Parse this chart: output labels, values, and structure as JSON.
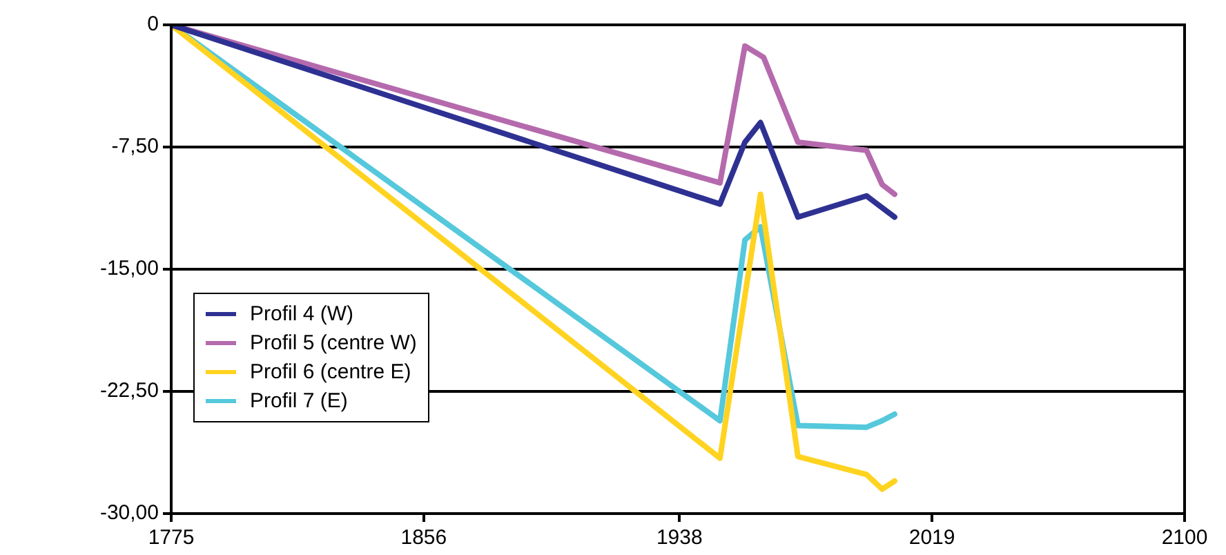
{
  "chart_data": {
    "type": "line",
    "series": [
      {
        "name": "Profil 4 (W)",
        "color": "#2e3192",
        "x": [
          1775,
          1951,
          1959,
          1964,
          1976,
          1998,
          2007
        ],
        "values": [
          0,
          -11.0,
          -7.2,
          -6.0,
          -11.8,
          -10.5,
          -11.8
        ]
      },
      {
        "name": "Profil 5 (centre W)",
        "color": "#b56aad",
        "x": [
          1775,
          1951,
          1959,
          1965,
          1976,
          1998,
          2003,
          2007
        ],
        "values": [
          0,
          -9.7,
          -1.3,
          -2.0,
          -7.2,
          -7.7,
          -9.8,
          -10.4
        ]
      },
      {
        "name": "Profil 6 (centre E)",
        "color": "#ffd320",
        "x": [
          1775,
          1951,
          1964,
          1976,
          1998,
          2003,
          2007
        ],
        "values": [
          0,
          -26.6,
          -10.4,
          -26.5,
          -27.6,
          -28.5,
          -28.0
        ]
      },
      {
        "name": "Profil 7 (E)",
        "color": "#55c8dc",
        "x": [
          1775,
          1951,
          1959,
          1964,
          1976,
          1998,
          2003,
          2007
        ],
        "values": [
          0,
          -24.3,
          -13.2,
          -12.4,
          -24.6,
          -24.7,
          -24.3,
          -23.9
        ]
      }
    ],
    "xlim": [
      1775,
      2100
    ],
    "xticks": [
      1775,
      1856,
      1938,
      2019,
      2100
    ],
    "ylim": [
      -30,
      0
    ],
    "yticks": [
      {
        "value": -30,
        "label": "-30,00"
      },
      {
        "value": -22.5,
        "label": "-22,50"
      },
      {
        "value": -15,
        "label": "-15,00"
      },
      {
        "value": -7.5,
        "label": "-7,50"
      },
      0
    ],
    "grid": "y",
    "legend": "bottom left",
    "marker": "none",
    "line_style": "solid"
  }
}
